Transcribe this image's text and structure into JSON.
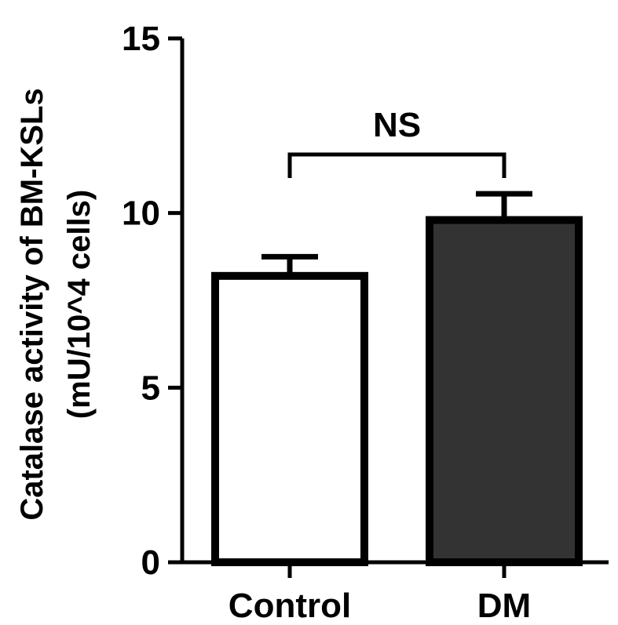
{
  "chart_data": {
    "type": "bar",
    "categories": [
      "Control",
      "DM"
    ],
    "values": [
      8.2,
      9.8
    ],
    "errors": [
      0.55,
      0.75
    ],
    "bar_colors": [
      "#ffffff",
      "#333333"
    ],
    "ylabel_line1": "Catalase activity of BM-KSLs",
    "ylabel_line2": "(mU/10^4 cells)",
    "ylim": [
      0,
      15
    ],
    "yticks": [
      0,
      5,
      10,
      15
    ],
    "annotation": "NS",
    "grid": false
  }
}
